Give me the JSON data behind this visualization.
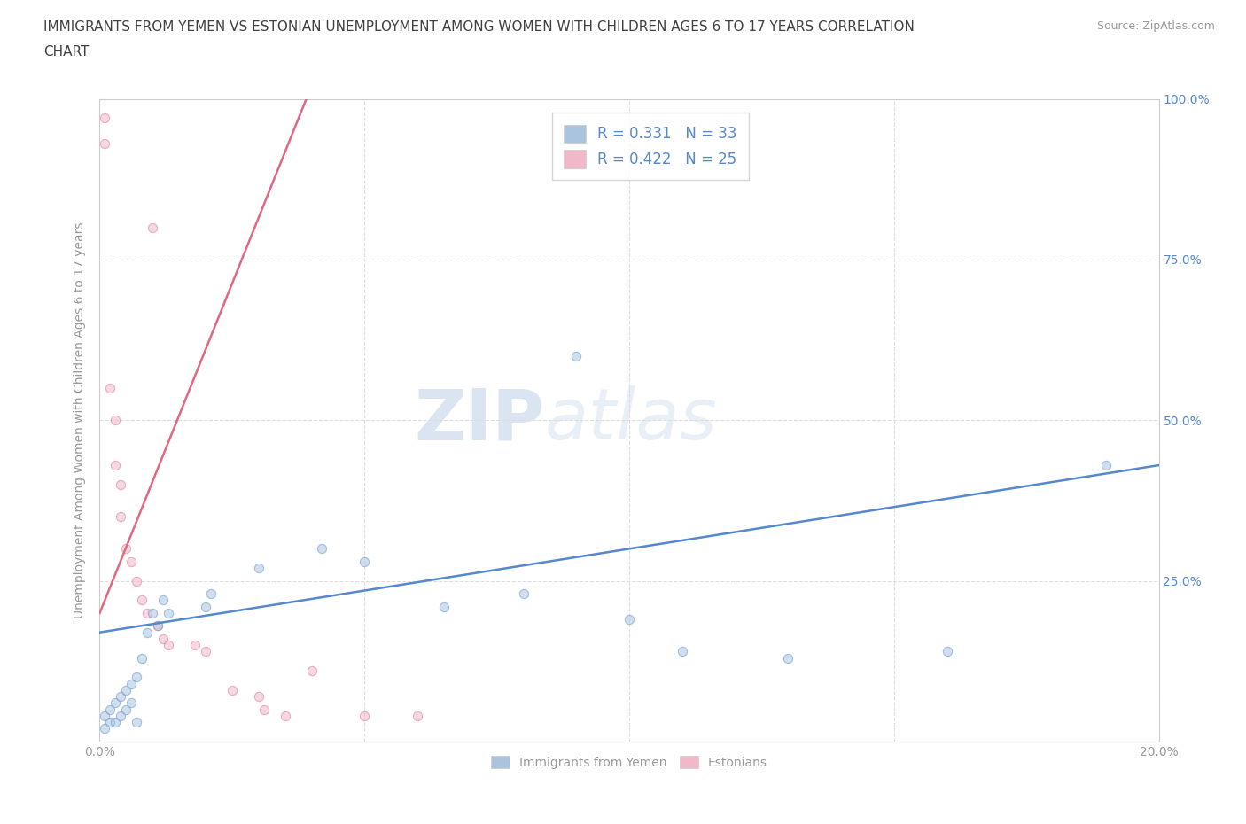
{
  "title_line1": "IMMIGRANTS FROM YEMEN VS ESTONIAN UNEMPLOYMENT AMONG WOMEN WITH CHILDREN AGES 6 TO 17 YEARS CORRELATION",
  "title_line2": "CHART",
  "source": "Source: ZipAtlas.com",
  "ylabel": "Unemployment Among Women with Children Ages 6 to 17 years",
  "xlim": [
    0.0,
    0.2
  ],
  "ylim": [
    0.0,
    1.0
  ],
  "x_ticks": [
    0.0,
    0.05,
    0.1,
    0.15,
    0.2
  ],
  "y_ticks": [
    0.0,
    0.25,
    0.5,
    0.75,
    1.0
  ],
  "y_tick_labels_right": [
    "",
    "25.0%",
    "50.0%",
    "75.0%",
    "100.0%"
  ],
  "blue_color": "#aac4e0",
  "blue_edge_color": "#6699cc",
  "pink_color": "#f0b8c8",
  "pink_edge_color": "#e07898",
  "blue_line_color": "#5588cc",
  "pink_line_color": "#e06880",
  "legend_R_blue": "0.331",
  "legend_N_blue": "33",
  "legend_R_pink": "0.422",
  "legend_N_pink": "25",
  "legend_label_blue": "Immigrants from Yemen",
  "legend_label_pink": "Estonians",
  "watermark_ZIP": "ZIP",
  "watermark_atlas": "atlas",
  "blue_scatter_x": [
    0.001,
    0.001,
    0.002,
    0.002,
    0.003,
    0.003,
    0.004,
    0.004,
    0.005,
    0.005,
    0.006,
    0.006,
    0.007,
    0.007,
    0.008,
    0.009,
    0.01,
    0.011,
    0.012,
    0.013,
    0.02,
    0.021,
    0.03,
    0.042,
    0.05,
    0.065,
    0.08,
    0.09,
    0.1,
    0.11,
    0.13,
    0.16,
    0.19
  ],
  "blue_scatter_y": [
    0.04,
    0.02,
    0.05,
    0.03,
    0.06,
    0.03,
    0.07,
    0.04,
    0.08,
    0.05,
    0.09,
    0.06,
    0.1,
    0.03,
    0.13,
    0.17,
    0.2,
    0.18,
    0.22,
    0.2,
    0.21,
    0.23,
    0.27,
    0.3,
    0.28,
    0.21,
    0.23,
    0.6,
    0.19,
    0.14,
    0.13,
    0.14,
    0.43
  ],
  "pink_scatter_x": [
    0.001,
    0.001,
    0.002,
    0.003,
    0.003,
    0.004,
    0.004,
    0.005,
    0.006,
    0.007,
    0.008,
    0.009,
    0.01,
    0.011,
    0.012,
    0.013,
    0.018,
    0.02,
    0.025,
    0.03,
    0.031,
    0.035,
    0.04,
    0.05,
    0.06
  ],
  "pink_scatter_y": [
    0.97,
    0.93,
    0.55,
    0.5,
    0.43,
    0.4,
    0.35,
    0.3,
    0.28,
    0.25,
    0.22,
    0.2,
    0.8,
    0.18,
    0.16,
    0.15,
    0.15,
    0.14,
    0.08,
    0.07,
    0.05,
    0.04,
    0.11,
    0.04,
    0.04
  ],
  "blue_trend_x": [
    0.0,
    0.2
  ],
  "blue_trend_y": [
    0.17,
    0.43
  ],
  "pink_trend_x": [
    0.0,
    0.04
  ],
  "pink_trend_y": [
    0.2,
    1.02
  ],
  "grid_color": "#dddddd",
  "background_color": "#ffffff",
  "title_color": "#404040",
  "tick_color": "#999999",
  "right_tick_color": "#5588cc",
  "marker_size": 55,
  "marker_alpha": 0.55
}
